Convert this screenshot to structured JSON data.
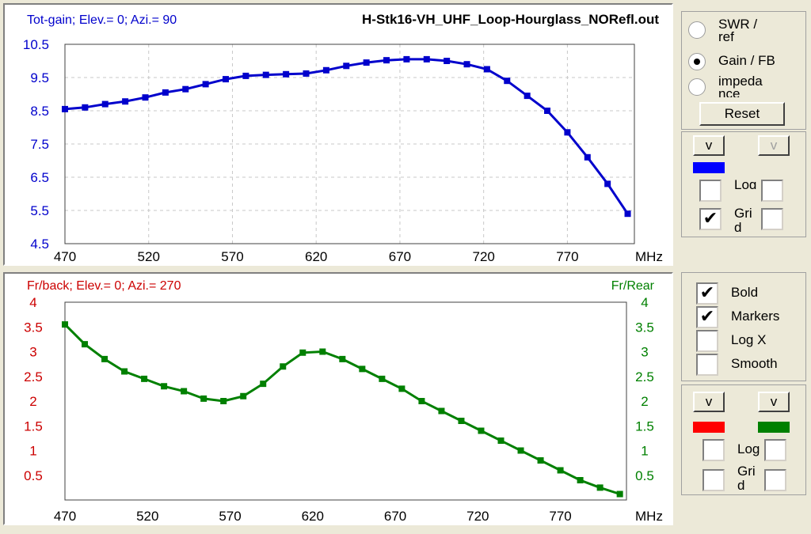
{
  "gain_chart": {
    "title_left": "Tot-gain; Elev.= 0; Azi.= 90",
    "title_right": "H-Stk16-VH_UHF_Loop-Hourglass_NORefl.out",
    "y_ticks": [
      "10.5",
      "9.5",
      "8.5",
      "7.5",
      "6.5",
      "5.5",
      "4.5"
    ],
    "x_ticks": [
      "470",
      "520",
      "570",
      "620",
      "670",
      "720",
      "770"
    ],
    "x_unit": "MHz",
    "color": "#0000cc"
  },
  "fb_chart": {
    "title_left": "Fr/back; Elev.= 0; Azi.= 270",
    "title_right": "Fr/Rear",
    "y_ticks_left": [
      "4",
      "3.5",
      "3",
      "2.5",
      "2",
      "1.5",
      "1",
      "0.5"
    ],
    "y_ticks_right": [
      "4",
      "3.5",
      "3",
      "2.5",
      "2",
      "1.5",
      "1",
      "0.5"
    ],
    "x_ticks": [
      "470",
      "520",
      "570",
      "620",
      "670",
      "720",
      "770"
    ],
    "x_unit": "MHz",
    "left_color": "#cc0000",
    "right_color": "#008000"
  },
  "chart_data": [
    {
      "type": "line",
      "title": "Tot-gain; Elev.= 0; Azi.= 90",
      "xlabel": "MHz",
      "ylabel": "",
      "xlim": [
        470,
        810
      ],
      "ylim": [
        4.5,
        10.5
      ],
      "grid": true,
      "series": [
        {
          "name": "",
          "color": "#0000cc",
          "x": [
            470,
            482,
            494,
            506,
            518,
            530,
            542,
            554,
            566,
            578,
            590,
            602,
            614,
            626,
            638,
            650,
            662,
            674,
            686,
            698,
            710,
            722,
            734,
            746,
            758,
            770,
            782,
            794,
            806
          ],
          "y": [
            8.55,
            8.6,
            8.7,
            8.78,
            8.9,
            9.05,
            9.15,
            9.3,
            9.45,
            9.55,
            9.58,
            9.6,
            9.62,
            9.72,
            9.85,
            9.95,
            10.02,
            10.05,
            10.05,
            10.0,
            9.9,
            9.75,
            9.4,
            8.95,
            8.5,
            7.85,
            7.1,
            6.3,
            5.4
          ]
        }
      ]
    },
    {
      "type": "line",
      "title": "Fr/back; Elev.= 0; Azi.= 270",
      "xlabel": "MHz",
      "ylabel": "Fr/Rear",
      "xlim": [
        470,
        810
      ],
      "ylim": [
        0,
        4
      ],
      "grid": false,
      "series": [
        {
          "name": "",
          "color": "#008000",
          "x": [
            470,
            482,
            494,
            506,
            518,
            530,
            542,
            554,
            566,
            578,
            590,
            602,
            614,
            626,
            638,
            650,
            662,
            674,
            686,
            698,
            710,
            722,
            734,
            746,
            758,
            770,
            782,
            794,
            806
          ],
          "y": [
            3.55,
            3.15,
            2.85,
            2.6,
            2.45,
            2.3,
            2.2,
            2.05,
            2.0,
            2.1,
            2.35,
            2.7,
            2.98,
            3.0,
            2.85,
            2.65,
            2.45,
            2.25,
            2.0,
            1.8,
            1.6,
            1.4,
            1.2,
            1.0,
            0.8,
            0.6,
            0.4,
            0.25,
            0.12
          ]
        }
      ]
    }
  ],
  "mode_panel": {
    "options": [
      "SWR / ref",
      "Gain / FB",
      "impedance"
    ],
    "selected": "Gain / FB",
    "reset_label": "Reset"
  },
  "upper_controls": {
    "v_label": "v",
    "v2_label": "v",
    "swatch_color": "#0000ff",
    "log_label": "Log",
    "grid_label": "Grid",
    "log_checked": false,
    "grid_checked": true
  },
  "options_panel": {
    "items": [
      {
        "label": "Bold",
        "checked": true
      },
      {
        "label": "Markers",
        "checked": true
      },
      {
        "label": "Log X",
        "checked": false
      },
      {
        "label": "Smooth",
        "checked": false
      }
    ]
  },
  "lower_controls": {
    "v_left_label": "v",
    "v_right_label": "v",
    "left_color": "#ff0000",
    "right_color": "#008000",
    "log_label": "Log",
    "grid_label": "Grid"
  }
}
